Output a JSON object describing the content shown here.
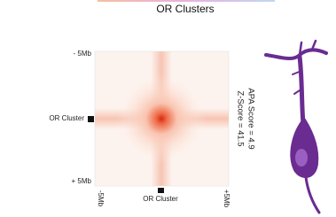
{
  "figure": {
    "title": "OR Clusters",
    "y_labels": [
      "- 5Mb",
      "OR Cluster",
      "+ 5Mb"
    ],
    "x_labels": [
      "-5Mb",
      "OR Cluster",
      "+5Mb"
    ],
    "scores": [
      "APA Score = 4.9",
      "Z-Score = 41.5"
    ]
  }
}
